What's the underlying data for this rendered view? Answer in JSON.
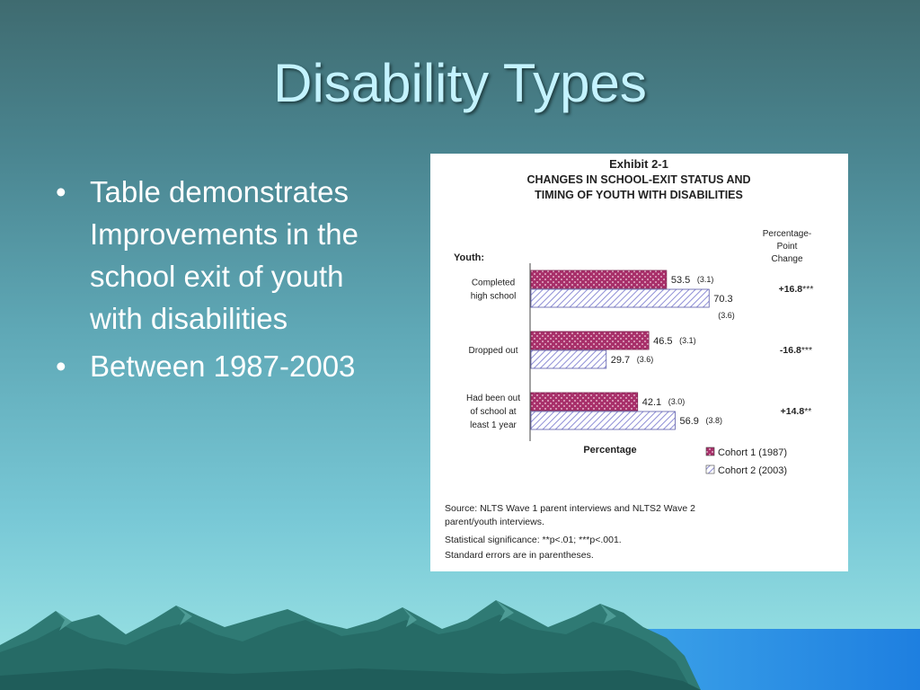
{
  "slide": {
    "title": "Disability Types",
    "bullets": [
      "Table demonstrates Improvements in the school exit of youth with disabilities",
      "Between 1987-2003"
    ],
    "bullet_lines": [
      [
        "Table demonstrates",
        "Improvements in the",
        "school exit of youth",
        "with disabilities"
      ],
      [
        "Between 1987-2003"
      ]
    ],
    "bullet_symbol": "•"
  },
  "exhibit": {
    "title_lines": [
      "Exhibit 2-1",
      "CHANGES IN SCHOOL-EXIT STATUS AND",
      "TIMING OF YOUTH WITH DISABILITIES"
    ],
    "y_header": "Youth:",
    "change_header_lines": [
      "Percentage-",
      "Point",
      "Change"
    ],
    "x_label": "Percentage",
    "notes": [
      "Source: NLTS Wave 1 parent interviews and NLTS2 Wave 2",
      "parent/youth interviews.",
      "Statistical significance: **p<.01; ***p<.001.",
      "Standard errors are in parentheses."
    ]
  },
  "chart_data": {
    "type": "bar",
    "orientation": "horizontal",
    "title": "Exhibit 2-1 CHANGES IN SCHOOL-EXIT STATUS AND TIMING OF YOUTH WITH DISABILITIES",
    "xlabel": "Percentage",
    "ylabel": "Youth:",
    "xlim": [
      0,
      100
    ],
    "grid": false,
    "legend": "bottom-right",
    "categories": [
      {
        "lines": [
          "Completed",
          "high school"
        ]
      },
      {
        "lines": [
          "Dropped out"
        ]
      },
      {
        "lines": [
          "Had been out",
          "of school at",
          "least 1 year"
        ]
      }
    ],
    "series": [
      {
        "name": "Cohort 1 (1987)",
        "color": "#a8306a",
        "pattern": "dots",
        "values": [
          53.5,
          46.5,
          42.1
        ],
        "errors": [
          "(3.1)",
          "(3.1)",
          "(3.0)"
        ]
      },
      {
        "name": "Cohort 2 (2003)",
        "color": "#8e8ed6",
        "pattern": "hatch",
        "values": [
          70.3,
          29.7,
          56.9
        ],
        "errors": [
          "(3.6)",
          "(3.6)",
          "(3.8)"
        ]
      }
    ],
    "changes": [
      {
        "value": "+16.8",
        "sig": "***"
      },
      {
        "value": "-16.8",
        "sig": "***"
      },
      {
        "value": "+14.8",
        "sig": "**"
      }
    ]
  }
}
